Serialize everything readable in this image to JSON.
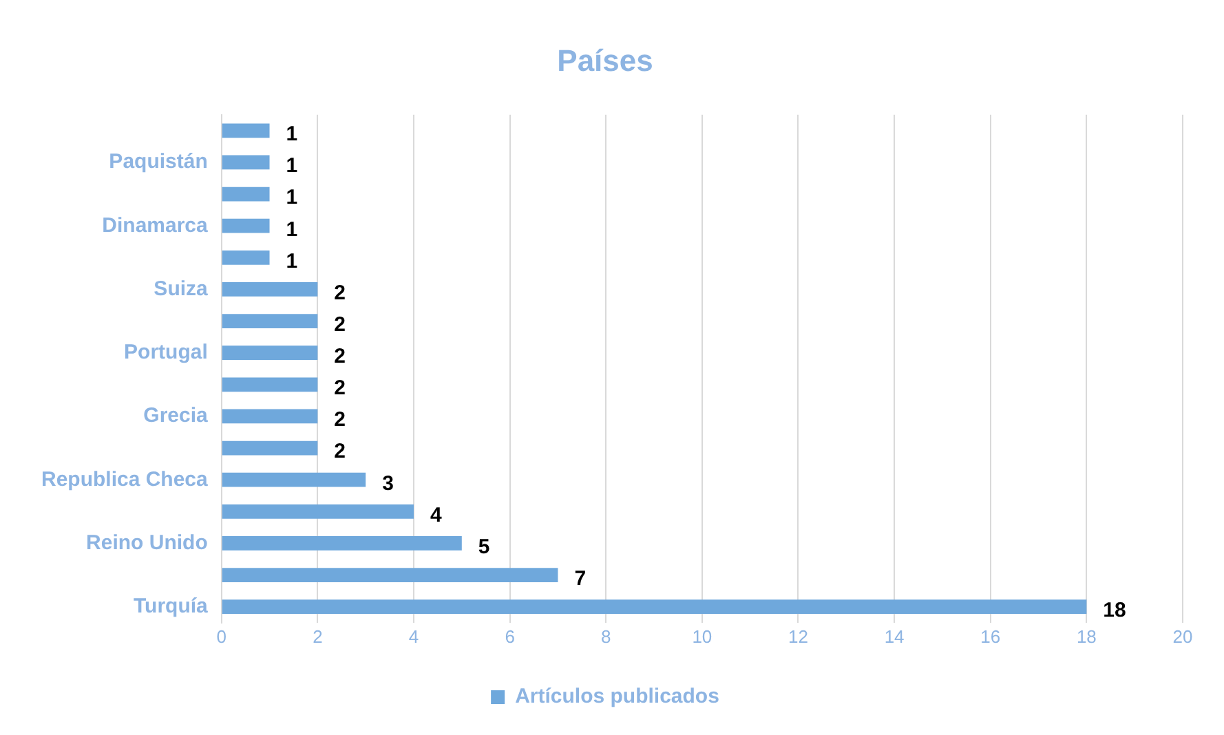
{
  "chart_data": {
    "type": "bar",
    "orientation": "horizontal",
    "title": "Países",
    "categories": [
      null,
      "Paquistán",
      null,
      "Dinamarca",
      null,
      "Suiza",
      null,
      "Portugal",
      null,
      "Grecia",
      null,
      "Republica Checa",
      null,
      "Reino Unido",
      null,
      "Turquía"
    ],
    "series": [
      {
        "name": "Artículos publicados",
        "color": "#6fa8dc",
        "values": [
          1,
          1,
          1,
          1,
          1,
          2,
          2,
          2,
          2,
          2,
          2,
          3,
          4,
          5,
          7,
          18
        ]
      }
    ],
    "xlim": [
      0,
      20
    ],
    "xticks": [
      0,
      2,
      4,
      6,
      8,
      10,
      12,
      14,
      16,
      18,
      20
    ],
    "grid": "x",
    "legend": "bottom",
    "data_labels": true
  }
}
